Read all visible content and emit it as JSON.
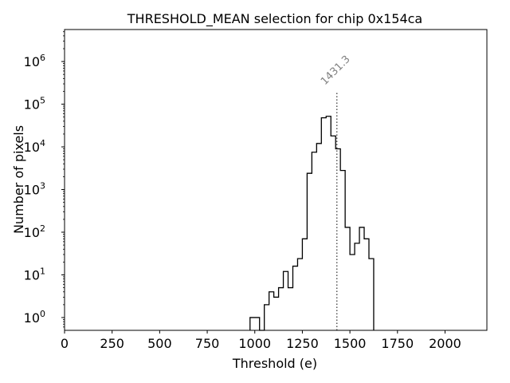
{
  "chart_data": {
    "type": "histogram",
    "title": "THRESHOLD_MEAN selection for chip 0x154ca",
    "xlabel": "Threshold (e)",
    "ylabel": "Number of pixels",
    "xlim": [
      0,
      2220
    ],
    "ylim_log10": [
      -0.3,
      6.75
    ],
    "yscale": "log",
    "x_ticks": [
      0,
      250,
      500,
      750,
      1000,
      1250,
      1500,
      1750,
      2000
    ],
    "x_tick_labels": [
      "0",
      "250",
      "500",
      "750",
      "1000",
      "1250",
      "1500",
      "1750",
      "2000"
    ],
    "y_ticks": [
      {
        "base": "10",
        "exp": "0",
        "value": 1
      },
      {
        "base": "10",
        "exp": "1",
        "value": 10
      },
      {
        "base": "10",
        "exp": "2",
        "value": 100
      },
      {
        "base": "10",
        "exp": "3",
        "value": 1000
      },
      {
        "base": "10",
        "exp": "4",
        "value": 10000
      },
      {
        "base": "10",
        "exp": "5",
        "value": 100000
      },
      {
        "base": "10",
        "exp": "6",
        "value": 1000000
      }
    ],
    "bin_width": 25,
    "bins": [
      {
        "x": 975,
        "count": 1
      },
      {
        "x": 1000,
        "count": 1
      },
      {
        "x": 1025,
        "count": 0
      },
      {
        "x": 1050,
        "count": 2
      },
      {
        "x": 1075,
        "count": 4
      },
      {
        "x": 1100,
        "count": 3
      },
      {
        "x": 1125,
        "count": 5
      },
      {
        "x": 1150,
        "count": 12
      },
      {
        "x": 1175,
        "count": 5
      },
      {
        "x": 1200,
        "count": 16
      },
      {
        "x": 1225,
        "count": 24
      },
      {
        "x": 1250,
        "count": 70
      },
      {
        "x": 1275,
        "count": 2400
      },
      {
        "x": 1300,
        "count": 7500
      },
      {
        "x": 1325,
        "count": 12000
      },
      {
        "x": 1350,
        "count": 48000
      },
      {
        "x": 1375,
        "count": 52000
      },
      {
        "x": 1400,
        "count": 18000
      },
      {
        "x": 1425,
        "count": 9000
      },
      {
        "x": 1450,
        "count": 2800
      },
      {
        "x": 1475,
        "count": 130
      },
      {
        "x": 1500,
        "count": 30
      },
      {
        "x": 1525,
        "count": 55
      },
      {
        "x": 1550,
        "count": 130
      },
      {
        "x": 1575,
        "count": 70
      },
      {
        "x": 1600,
        "count": 24
      }
    ],
    "vline": {
      "x": 1431.3,
      "label": "1431.3",
      "style": "dotted",
      "color": "#555555"
    },
    "colors": {
      "histogram": "#000000",
      "vline_label": "#808080"
    }
  }
}
